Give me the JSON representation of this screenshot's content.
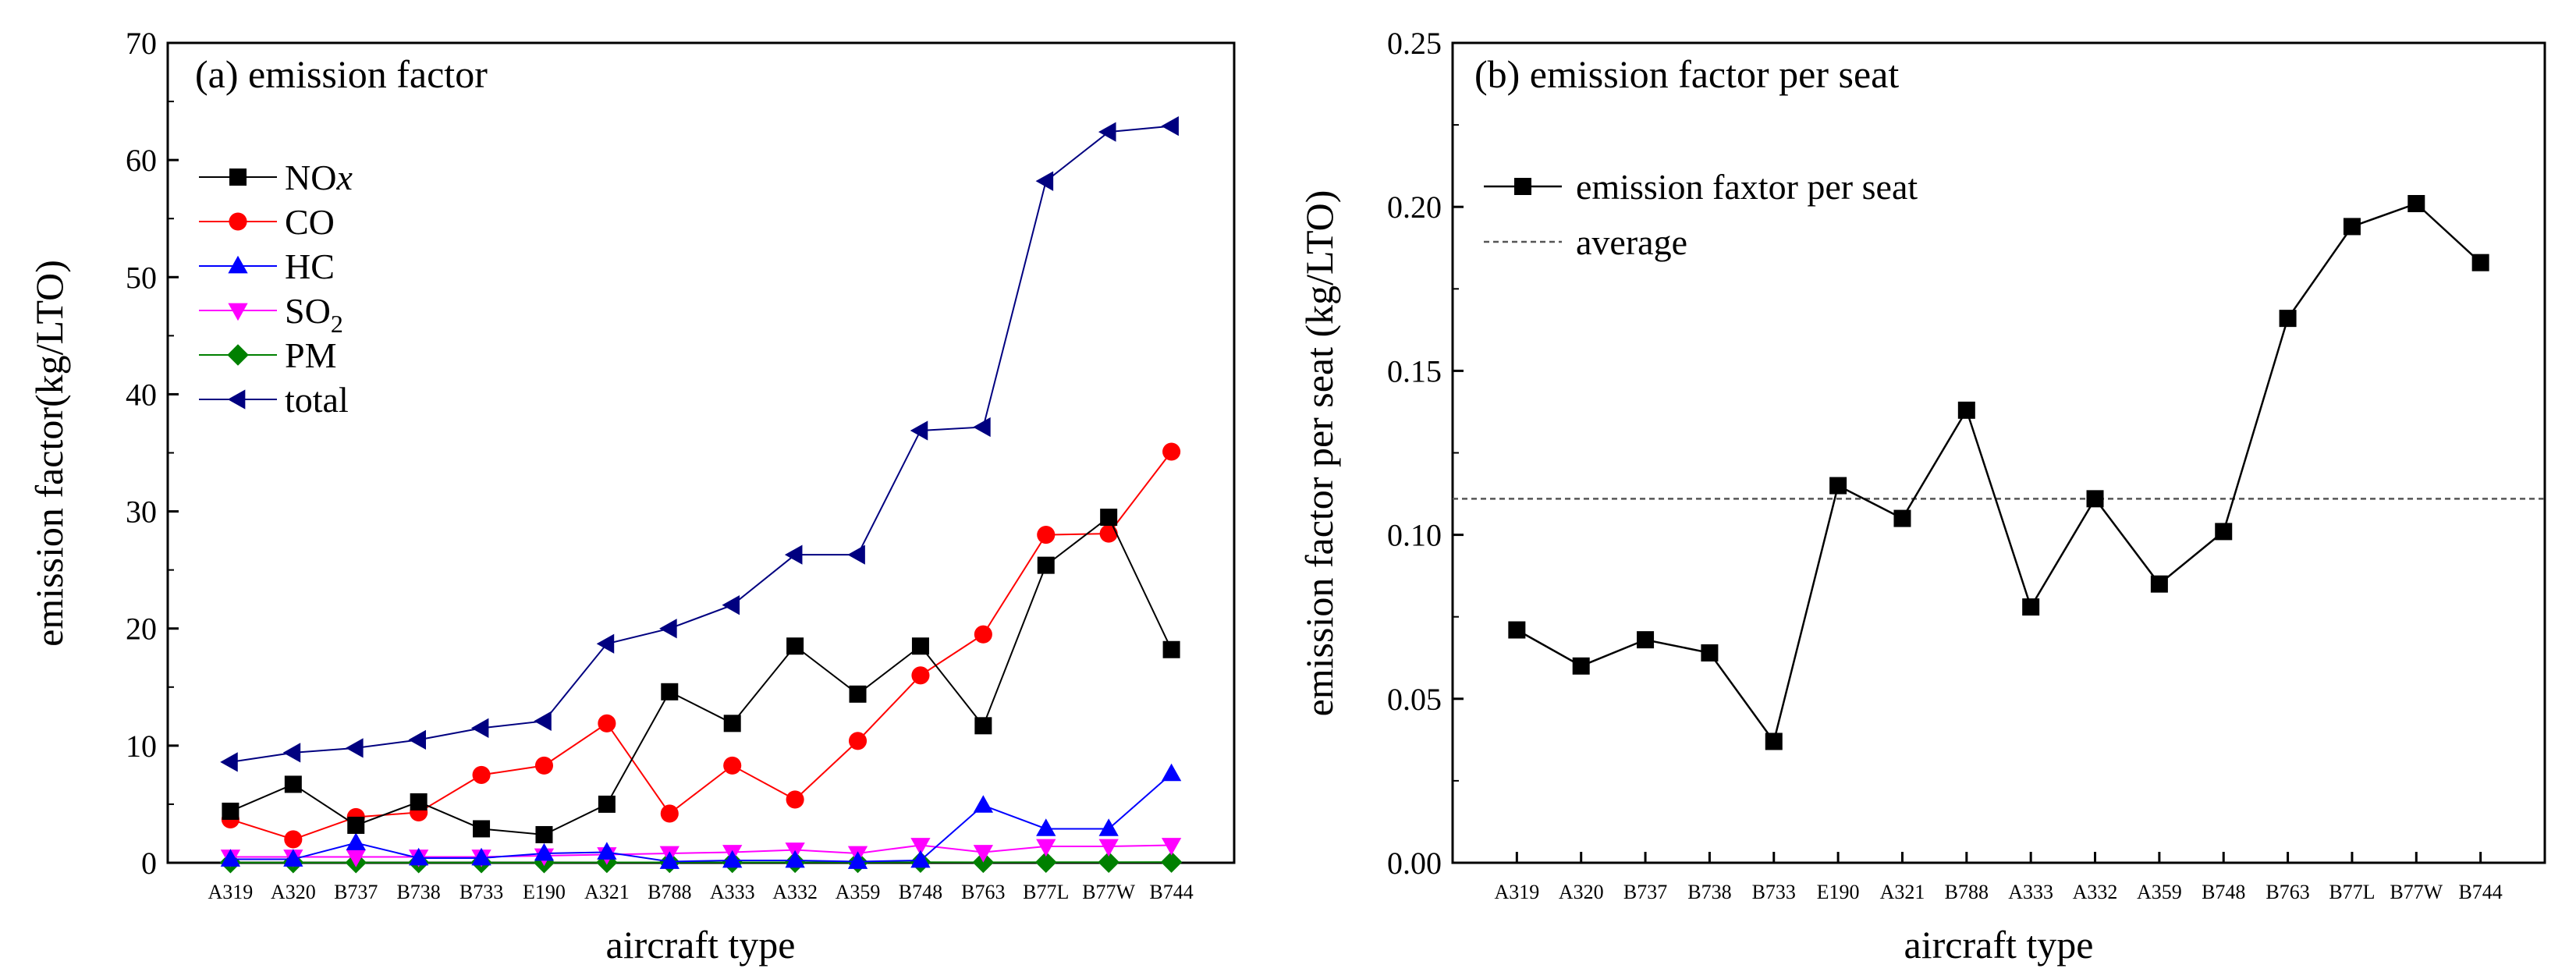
{
  "chart_data": [
    {
      "type": "line",
      "title": "(a) emission factor",
      "xlabel": "aircraft type",
      "ylabel": "emission factor(kg/LTO)",
      "ylim": [
        0,
        70
      ],
      "yticks": [
        "0",
        "10",
        "20",
        "30",
        "40",
        "50",
        "60",
        "70"
      ],
      "categories": [
        "A319",
        "A320",
        "B737",
        "B738",
        "B733",
        "E190",
        "A321",
        "B788",
        "A333",
        "A332",
        "A359",
        "B748",
        "B763",
        "B77L",
        "B77W",
        "B744"
      ],
      "legend_position": "top-left",
      "series": [
        {
          "name": "NOx",
          "legend_main": "NO",
          "legend_italic": "x",
          "color": "#000000",
          "marker": "square",
          "values": [
            4.4,
            6.7,
            3.2,
            5.2,
            2.9,
            2.4,
            5.0,
            14.6,
            11.9,
            18.5,
            14.4,
            18.5,
            11.7,
            25.4,
            29.5,
            18.2
          ]
        },
        {
          "name": "CO",
          "legend_main": "CO",
          "legend_italic": "",
          "color": "#ff0000",
          "marker": "circle",
          "values": [
            3.7,
            2.0,
            3.9,
            4.3,
            7.5,
            8.3,
            11.9,
            4.2,
            8.3,
            5.4,
            10.4,
            16.0,
            19.5,
            28.0,
            28.1,
            35.1
          ]
        },
        {
          "name": "HC",
          "legend_main": "HC",
          "legend_italic": "",
          "color": "#0000ff",
          "marker": "triangle-up",
          "values": [
            0.3,
            0.3,
            1.7,
            0.4,
            0.4,
            0.8,
            0.9,
            0.1,
            0.2,
            0.2,
            0.1,
            0.2,
            4.9,
            2.9,
            2.9,
            7.6
          ]
        },
        {
          "name": "SO2",
          "legend_main": "SO",
          "legend_sub": "2",
          "legend_italic": "",
          "color": "#ff00ff",
          "marker": "triangle-down",
          "values": [
            0.5,
            0.5,
            0.5,
            0.5,
            0.5,
            0.6,
            0.7,
            0.8,
            0.9,
            1.1,
            0.8,
            1.5,
            0.9,
            1.4,
            1.4,
            1.5
          ]
        },
        {
          "name": "PM",
          "legend_main": "PM",
          "legend_italic": "",
          "color": "#008000",
          "marker": "diamond",
          "values": [
            0.02,
            0.02,
            0.02,
            0.02,
            0.02,
            0.02,
            0.03,
            0.03,
            0.03,
            0.04,
            0.03,
            0.05,
            0.04,
            0.05,
            0.05,
            0.06
          ]
        },
        {
          "name": "total",
          "legend_main": "total",
          "legend_italic": "",
          "color": "#000080",
          "marker": "triangle-left",
          "values": [
            8.6,
            9.4,
            9.8,
            10.5,
            11.5,
            12.1,
            18.7,
            20.0,
            22.0,
            26.3,
            26.3,
            36.9,
            37.2,
            58.2,
            62.4,
            62.9
          ]
        }
      ]
    },
    {
      "type": "line",
      "title": "(b) emission factor per seat",
      "xlabel": "aircraft type",
      "ylabel": "emission factor per seat (kg/LTO)",
      "ylim": [
        0,
        0.25
      ],
      "yticks": [
        "0.00",
        "0.05",
        "0.10",
        "0.15",
        "0.20",
        "0.25"
      ],
      "categories": [
        "A319",
        "A320",
        "B737",
        "B738",
        "B733",
        "E190",
        "A321",
        "B788",
        "A333",
        "A332",
        "A359",
        "B748",
        "B763",
        "B77L",
        "B77W",
        "B744"
      ],
      "legend_position": "top-left",
      "series": [
        {
          "name": "emission faxtor per seat",
          "color": "#000000",
          "marker": "square",
          "values": [
            0.071,
            0.06,
            0.068,
            0.064,
            0.037,
            0.115,
            0.105,
            0.138,
            0.078,
            0.111,
            0.085,
            0.101,
            0.166,
            0.194,
            0.201,
            0.183
          ]
        }
      ],
      "reference_line": {
        "name": "average",
        "value": 0.111,
        "style": "dashed"
      }
    }
  ]
}
